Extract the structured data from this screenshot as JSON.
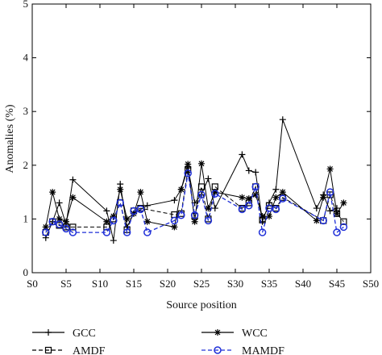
{
  "chart_data": {
    "type": "line",
    "xlabel": "Source position",
    "ylabel": "Anomalies (%)",
    "xlim": [
      0,
      50
    ],
    "ylim": [
      0,
      5
    ],
    "x_ticks": [
      "S0",
      "S5",
      "S10",
      "S15",
      "S20",
      "S25",
      "S30",
      "S35",
      "S40",
      "S45",
      "S50"
    ],
    "y_ticks": [
      "0",
      "1",
      "2",
      "3",
      "4",
      "5"
    ],
    "grid": false,
    "legend_position": "bottom",
    "series": [
      {
        "name": "GCC",
        "color": "#000000",
        "marker": "plus",
        "dash": "solid",
        "points": [
          [
            2,
            0.65
          ],
          [
            3,
            0.95
          ],
          [
            4,
            1.3
          ],
          [
            5,
            0.9
          ],
          [
            6,
            1.73
          ],
          [
            11,
            1.15
          ],
          [
            12,
            0.6
          ],
          [
            13,
            1.65
          ],
          [
            14,
            0.85
          ],
          [
            15,
            1.1
          ],
          [
            17,
            1.25
          ],
          [
            21,
            1.35
          ],
          [
            22,
            1.55
          ],
          [
            23,
            1.95
          ],
          [
            24,
            1.3
          ],
          [
            25,
            1.45
          ],
          [
            26,
            1.75
          ],
          [
            27,
            1.2
          ],
          [
            31,
            2.2
          ],
          [
            32,
            1.9
          ],
          [
            33,
            1.87
          ],
          [
            34,
            0.95
          ],
          [
            35,
            1.3
          ],
          [
            36,
            1.55
          ],
          [
            37,
            2.85
          ],
          [
            42,
            1.2
          ],
          [
            43,
            1.45
          ],
          [
            44,
            1.15
          ],
          [
            45,
            1.2
          ]
        ]
      },
      {
        "name": "WCC",
        "color": "#000000",
        "marker": "star",
        "dash": "solid",
        "points": [
          [
            2,
            0.85
          ],
          [
            3,
            1.5
          ],
          [
            4,
            1.0
          ],
          [
            5,
            0.95
          ],
          [
            6,
            1.4
          ],
          [
            11,
            0.95
          ],
          [
            12,
            1.05
          ],
          [
            13,
            1.55
          ],
          [
            14,
            1.0
          ],
          [
            15,
            1.1
          ],
          [
            16,
            1.5
          ],
          [
            17,
            0.95
          ],
          [
            21,
            0.85
          ],
          [
            22,
            1.55
          ],
          [
            23,
            2.02
          ],
          [
            24,
            0.95
          ],
          [
            25,
            2.03
          ],
          [
            26,
            1.2
          ],
          [
            27,
            1.5
          ],
          [
            31,
            1.4
          ],
          [
            32,
            1.38
          ],
          [
            33,
            1.45
          ],
          [
            34,
            1.05
          ],
          [
            35,
            1.05
          ],
          [
            36,
            1.4
          ],
          [
            37,
            1.5
          ],
          [
            42,
            0.97
          ],
          [
            43,
            1.4
          ],
          [
            44,
            1.93
          ],
          [
            45,
            1.1
          ],
          [
            46,
            1.3
          ]
        ]
      },
      {
        "name": "AMDF",
        "color": "#000000",
        "marker": "square",
        "dash": "dashed",
        "points": [
          [
            2,
            0.75
          ],
          [
            3,
            0.95
          ],
          [
            4,
            0.88
          ],
          [
            5,
            0.85
          ],
          [
            6,
            0.85
          ],
          [
            11,
            0.85
          ],
          [
            12,
            1.0
          ],
          [
            13,
            1.3
          ],
          [
            14,
            0.8
          ],
          [
            15,
            1.15
          ],
          [
            16,
            1.2
          ],
          [
            21,
            1.08
          ],
          [
            22,
            1.1
          ],
          [
            23,
            1.92
          ],
          [
            24,
            1.05
          ],
          [
            25,
            1.6
          ],
          [
            26,
            1.0
          ],
          [
            27,
            1.6
          ],
          [
            31,
            1.2
          ],
          [
            32,
            1.3
          ],
          [
            33,
            1.6
          ],
          [
            34,
            0.98
          ],
          [
            35,
            1.25
          ],
          [
            36,
            1.2
          ],
          [
            37,
            1.4
          ],
          [
            43,
            0.97
          ],
          [
            44,
            1.45
          ],
          [
            45,
            1.1
          ],
          [
            46,
            0.95
          ]
        ]
      },
      {
        "name": "MAMDF",
        "color": "#1f2fd8",
        "marker": "circle",
        "dash": "dashed",
        "points": [
          [
            2,
            0.75
          ],
          [
            3,
            0.95
          ],
          [
            4,
            0.9
          ],
          [
            5,
            0.82
          ],
          [
            6,
            0.75
          ],
          [
            11,
            0.75
          ],
          [
            12,
            0.97
          ],
          [
            13,
            1.3
          ],
          [
            14,
            0.75
          ],
          [
            15,
            1.15
          ],
          [
            16,
            1.18
          ],
          [
            17,
            0.75
          ],
          [
            21,
            0.97
          ],
          [
            22,
            1.07
          ],
          [
            23,
            1.85
          ],
          [
            24,
            1.07
          ],
          [
            25,
            1.45
          ],
          [
            26,
            0.97
          ],
          [
            27,
            1.47
          ],
          [
            31,
            1.18
          ],
          [
            32,
            1.25
          ],
          [
            33,
            1.6
          ],
          [
            34,
            0.75
          ],
          [
            35,
            1.2
          ],
          [
            36,
            1.18
          ],
          [
            37,
            1.38
          ],
          [
            43,
            0.97
          ],
          [
            44,
            1.5
          ],
          [
            45,
            0.75
          ],
          [
            46,
            0.85
          ]
        ]
      }
    ]
  }
}
